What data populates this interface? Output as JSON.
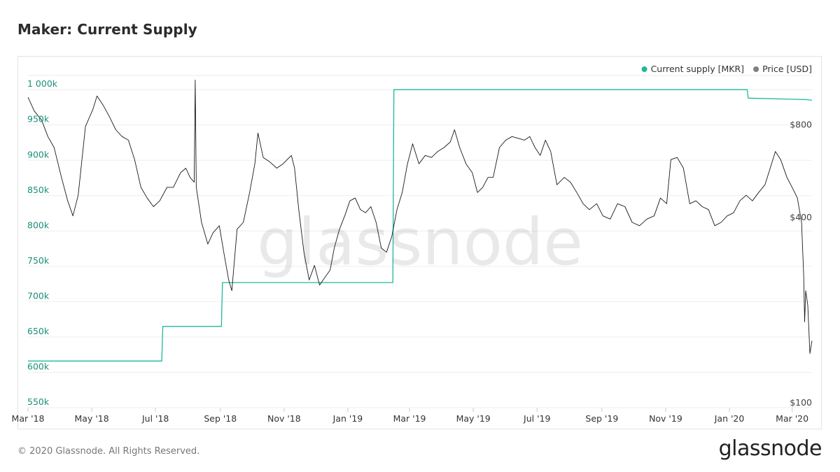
{
  "title": "Maker: Current Supply",
  "footer": "© 2020 Glassnode. All Rights Reserved.",
  "brand": "glassnode",
  "watermark": "glassnode",
  "chart_data": {
    "type": "line",
    "title": "Maker: Current Supply",
    "x_labels": [
      "Mar '18",
      "May '18",
      "Jul '18",
      "Sep '18",
      "Nov '18",
      "Jan '19",
      "Mar '19",
      "May '19",
      "Jul '19",
      "Sep '19",
      "Nov '19",
      "Jan '20",
      "Mar '20"
    ],
    "x_range": [
      "2018-03-01",
      "2020-03-20"
    ],
    "y_left": {
      "ticks": [
        "550k",
        "600k",
        "650k",
        "700k",
        "750k",
        "800k",
        "850k",
        "900k",
        "950k",
        "1 000k"
      ],
      "range": [
        550000,
        1020000
      ],
      "color": "#1a8f7a"
    },
    "y_right": {
      "ticks": [
        "$100",
        "$400",
        "$800"
      ],
      "scale": "log",
      "range": [
        100,
        1200
      ],
      "tick_values": [
        100,
        400,
        800
      ]
    },
    "legend": {
      "position": "top-right",
      "entries": [
        {
          "name": "Current supply [MKR]",
          "color": "#1fb89a"
        },
        {
          "name": "Price [USD]",
          "color": "#808080"
        }
      ]
    },
    "grid": true,
    "series": [
      {
        "name": "Current supply [MKR]",
        "axis": "left",
        "color": "#1fb89a",
        "points": [
          [
            "2018-03-01",
            616000
          ],
          [
            "2018-07-07",
            616000
          ],
          [
            "2018-07-08",
            665000
          ],
          [
            "2018-09-02",
            665000
          ],
          [
            "2018-09-03",
            727000
          ],
          [
            "2019-02-13",
            727000
          ],
          [
            "2019-02-14",
            1000000
          ],
          [
            "2020-01-18",
            1000000
          ],
          [
            "2020-01-19",
            988000
          ],
          [
            "2020-03-14",
            986000
          ],
          [
            "2020-03-20",
            985000
          ]
        ]
      },
      {
        "name": "Price [USD]",
        "axis": "right",
        "color": "#1a1a1a",
        "points": [
          [
            "2018-03-01",
            1020
          ],
          [
            "2018-03-07",
            920
          ],
          [
            "2018-03-14",
            860
          ],
          [
            "2018-03-20",
            760
          ],
          [
            "2018-03-26",
            700
          ],
          [
            "2018-04-02",
            560
          ],
          [
            "2018-04-08",
            470
          ],
          [
            "2018-04-13",
            420
          ],
          [
            "2018-04-18",
            490
          ],
          [
            "2018-04-25",
            820
          ],
          [
            "2018-05-02",
            930
          ],
          [
            "2018-05-06",
            1030
          ],
          [
            "2018-05-12",
            960
          ],
          [
            "2018-05-18",
            880
          ],
          [
            "2018-05-24",
            800
          ],
          [
            "2018-05-30",
            760
          ],
          [
            "2018-06-05",
            740
          ],
          [
            "2018-06-11",
            640
          ],
          [
            "2018-06-17",
            520
          ],
          [
            "2018-06-23",
            480
          ],
          [
            "2018-06-29",
            450
          ],
          [
            "2018-07-05",
            470
          ],
          [
            "2018-07-12",
            520
          ],
          [
            "2018-07-18",
            520
          ],
          [
            "2018-07-25",
            580
          ],
          [
            "2018-07-30",
            600
          ],
          [
            "2018-08-03",
            560
          ],
          [
            "2018-08-07",
            540
          ],
          [
            "2018-08-08",
            1160
          ],
          [
            "2018-08-09",
            520
          ],
          [
            "2018-08-14",
            400
          ],
          [
            "2018-08-20",
            340
          ],
          [
            "2018-08-25",
            370
          ],
          [
            "2018-08-31",
            390
          ],
          [
            "2018-09-05",
            310
          ],
          [
            "2018-09-09",
            260
          ],
          [
            "2018-09-12",
            240
          ],
          [
            "2018-09-17",
            380
          ],
          [
            "2018-09-23",
            400
          ],
          [
            "2018-09-29",
            500
          ],
          [
            "2018-10-04",
            620
          ],
          [
            "2018-10-07",
            780
          ],
          [
            "2018-10-12",
            650
          ],
          [
            "2018-10-18",
            630
          ],
          [
            "2018-10-25",
            600
          ],
          [
            "2018-10-31",
            620
          ],
          [
            "2018-11-04",
            640
          ],
          [
            "2018-11-08",
            660
          ],
          [
            "2018-11-11",
            600
          ],
          [
            "2018-11-15",
            440
          ],
          [
            "2018-11-20",
            320
          ],
          [
            "2018-11-25",
            260
          ],
          [
            "2018-11-30",
            290
          ],
          [
            "2018-12-05",
            250
          ],
          [
            "2018-12-10",
            265
          ],
          [
            "2018-12-15",
            280
          ],
          [
            "2018-12-19",
            330
          ],
          [
            "2018-12-24",
            380
          ],
          [
            "2018-12-29",
            420
          ],
          [
            "2019-01-03",
            470
          ],
          [
            "2019-01-08",
            480
          ],
          [
            "2019-01-13",
            440
          ],
          [
            "2019-01-18",
            430
          ],
          [
            "2019-01-23",
            450
          ],
          [
            "2019-01-28",
            400
          ],
          [
            "2019-02-02",
            330
          ],
          [
            "2019-02-07",
            320
          ],
          [
            "2019-02-12",
            360
          ],
          [
            "2019-02-17",
            440
          ],
          [
            "2019-02-22",
            500
          ],
          [
            "2019-02-27",
            620
          ],
          [
            "2019-03-04",
            720
          ],
          [
            "2019-03-10",
            620
          ],
          [
            "2019-03-16",
            660
          ],
          [
            "2019-03-22",
            650
          ],
          [
            "2019-03-28",
            680
          ],
          [
            "2019-04-03",
            700
          ],
          [
            "2019-04-09",
            730
          ],
          [
            "2019-04-13",
            800
          ],
          [
            "2019-04-18",
            700
          ],
          [
            "2019-04-24",
            620
          ],
          [
            "2019-04-30",
            580
          ],
          [
            "2019-05-05",
            500
          ],
          [
            "2019-05-10",
            520
          ],
          [
            "2019-05-15",
            560
          ],
          [
            "2019-05-20",
            560
          ],
          [
            "2019-05-26",
            700
          ],
          [
            "2019-06-01",
            740
          ],
          [
            "2019-06-07",
            760
          ],
          [
            "2019-06-13",
            750
          ],
          [
            "2019-06-19",
            740
          ],
          [
            "2019-06-24",
            760
          ],
          [
            "2019-06-29",
            700
          ],
          [
            "2019-07-04",
            660
          ],
          [
            "2019-07-09",
            740
          ],
          [
            "2019-07-14",
            680
          ],
          [
            "2019-07-20",
            530
          ],
          [
            "2019-07-27",
            560
          ],
          [
            "2019-08-02",
            540
          ],
          [
            "2019-08-08",
            500
          ],
          [
            "2019-08-14",
            460
          ],
          [
            "2019-08-20",
            440
          ],
          [
            "2019-08-27",
            460
          ],
          [
            "2019-09-02",
            420
          ],
          [
            "2019-09-09",
            410
          ],
          [
            "2019-09-16",
            460
          ],
          [
            "2019-09-23",
            450
          ],
          [
            "2019-09-30",
            400
          ],
          [
            "2019-10-07",
            390
          ],
          [
            "2019-10-14",
            410
          ],
          [
            "2019-10-21",
            420
          ],
          [
            "2019-10-27",
            480
          ],
          [
            "2019-11-02",
            460
          ],
          [
            "2019-11-06",
            640
          ],
          [
            "2019-11-12",
            650
          ],
          [
            "2019-11-18",
            600
          ],
          [
            "2019-11-24",
            460
          ],
          [
            "2019-11-30",
            470
          ],
          [
            "2019-12-06",
            450
          ],
          [
            "2019-12-12",
            440
          ],
          [
            "2019-12-18",
            390
          ],
          [
            "2019-12-24",
            400
          ],
          [
            "2019-12-30",
            420
          ],
          [
            "2020-01-05",
            430
          ],
          [
            "2020-01-11",
            470
          ],
          [
            "2020-01-17",
            490
          ],
          [
            "2020-01-23",
            470
          ],
          [
            "2020-01-29",
            500
          ],
          [
            "2020-02-04",
            530
          ],
          [
            "2020-02-09",
            600
          ],
          [
            "2020-02-14",
            680
          ],
          [
            "2020-02-19",
            640
          ],
          [
            "2020-02-25",
            560
          ],
          [
            "2020-03-01",
            520
          ],
          [
            "2020-03-06",
            480
          ],
          [
            "2020-03-10",
            400
          ],
          [
            "2020-03-12",
            270
          ],
          [
            "2020-03-13",
            190
          ],
          [
            "2020-03-14",
            240
          ],
          [
            "2020-03-16",
            215
          ],
          [
            "2020-03-18",
            150
          ],
          [
            "2020-03-20",
            165
          ]
        ]
      }
    ]
  }
}
